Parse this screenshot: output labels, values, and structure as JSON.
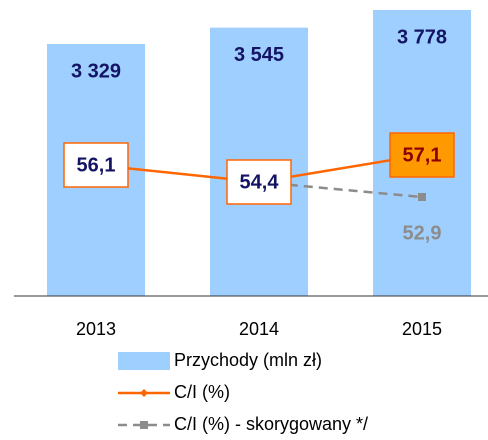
{
  "chart_data": {
    "type": "bar",
    "categories": [
      "2013",
      "2014",
      "2015"
    ],
    "ylim": [
      0,
      3910
    ],
    "y2lim": [
      43,
      72.6
    ],
    "legend": "bottom",
    "series": [
      {
        "name": "Przychody (mln zł)",
        "type": "bar",
        "color": "#9fcfff",
        "values": [
          3329,
          3545,
          3778
        ],
        "value_labels": [
          "3 329",
          "3 545",
          "3 778"
        ]
      },
      {
        "name": "C/I (%)",
        "type": "line",
        "axis": "y2",
        "color": "#ff6600",
        "values": [
          56.1,
          54.4,
          57.1
        ],
        "value_labels": [
          "56,1",
          "54,4",
          "57,1"
        ]
      },
      {
        "name": "C/I (%) - skorygowany */",
        "type": "line",
        "axis": "y2",
        "color": "#8c8c8c",
        "dashed": true,
        "values": [
          null,
          54.4,
          52.9
        ],
        "value_labels": [
          null,
          null,
          "52,9"
        ]
      }
    ]
  }
}
